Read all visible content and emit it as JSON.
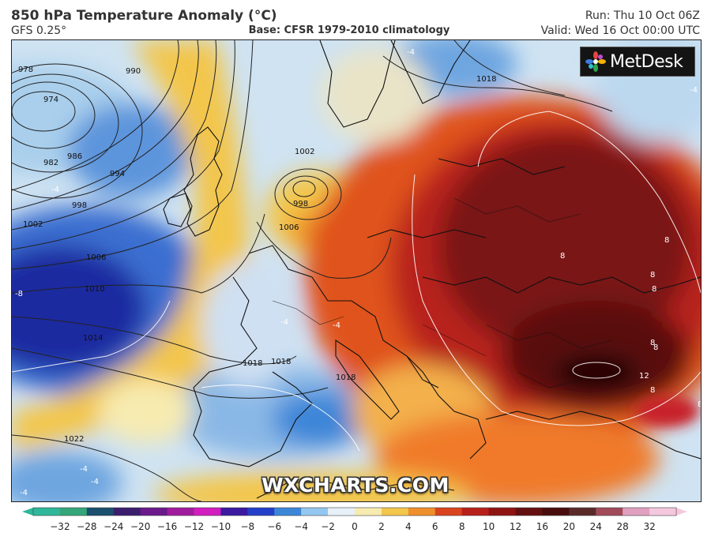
{
  "header": {
    "title": "850 hPa Temperature Anomaly (°C)",
    "model": "GFS 0.25°",
    "base": "Base: CFSR 1979-2010 climatology",
    "run": "Run: Thu 10 Oct 06Z",
    "valid": "Valid: Wed 16 Oct 00:00 UTC"
  },
  "logo": {
    "text": "MetDesk",
    "icon": "metdesk-pinwheel-icon"
  },
  "watermark": "WXCHARTS.COM",
  "map": {
    "isobars": [
      "978",
      "974",
      "982",
      "986",
      "990",
      "994",
      "998",
      "1002",
      "1006",
      "1010",
      "1014",
      "1018",
      "1022",
      "1002",
      "998",
      "1006",
      "1018",
      "1018",
      "1018"
    ],
    "anomaly_labels": [
      "-4",
      "-4",
      "-4",
      "-8",
      "-4",
      "-4",
      "-4",
      "-4",
      "8",
      "8",
      "8",
      "8",
      "8",
      "8",
      "8",
      "12",
      "8",
      "-4"
    ]
  },
  "scale": {
    "ticks": [
      "−32",
      "−28",
      "−24",
      "−20",
      "−16",
      "−12",
      "−10",
      "−8",
      "−6",
      "−4",
      "−2",
      "0",
      "2",
      "4",
      "6",
      "8",
      "10",
      "12",
      "16",
      "20",
      "24",
      "28",
      "32"
    ],
    "colors": [
      "#2fb79a",
      "#34a67a",
      "#1a4f6d",
      "#3b1d6e",
      "#6a1a8a",
      "#a01c9c",
      "#d21ec0",
      "#3b1aa0",
      "#2540c8",
      "#3c86d8",
      "#93c7ef",
      "#e8f1f8",
      "#f7ebb0",
      "#f3c64c",
      "#ef8f2c",
      "#d9441e",
      "#b7201a",
      "#8e1414",
      "#641010",
      "#4a0d0d",
      "#5a2a2a",
      "#a04a5a",
      "#e0a0c0",
      "#f4c8dd"
    ]
  }
}
